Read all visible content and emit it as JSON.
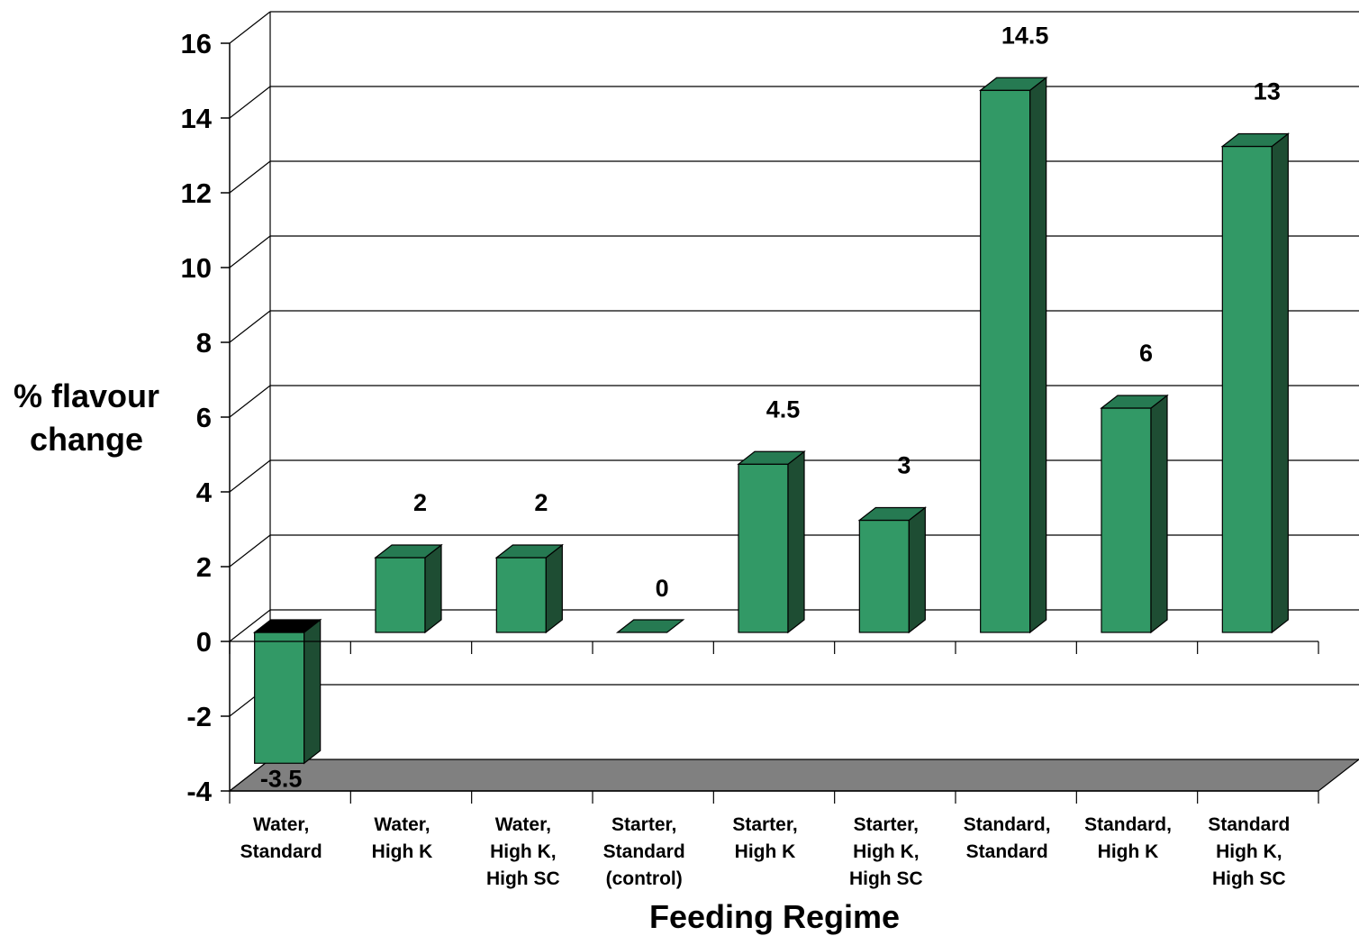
{
  "chart_data": {
    "type": "bar",
    "style": "3d",
    "title": "",
    "xlabel": "Feeding Regime",
    "ylabel": "% flavour change",
    "ylim": [
      -4,
      16
    ],
    "yticks": [
      -4,
      -2,
      0,
      2,
      4,
      6,
      8,
      10,
      12,
      14,
      16
    ],
    "grid": true,
    "legend": "none",
    "categories": [
      [
        "Water,",
        "Standard"
      ],
      [
        "Water,",
        "High K"
      ],
      [
        "Water,",
        "High K,",
        "High SC"
      ],
      [
        "Starter,",
        "Standard",
        "(control)"
      ],
      [
        "Starter,",
        "High K"
      ],
      [
        "Starter,",
        "High K,",
        "High SC"
      ],
      [
        "Standard,",
        "Standard"
      ],
      [
        "Standard,",
        "High K"
      ],
      [
        "Standard",
        "High K,",
        "High SC"
      ]
    ],
    "values": [
      -3.5,
      2,
      2,
      0,
      4.5,
      3,
      14.5,
      6,
      13
    ],
    "data_labels": [
      "-3.5",
      "2",
      "2",
      "0",
      "4.5",
      "3",
      "14.5",
      "6",
      "13"
    ],
    "colors": {
      "bar_front": "#329966",
      "bar_top": "#267a52",
      "bar_side": "#1e4d33",
      "floor": "#808080",
      "outline": "#000000"
    }
  }
}
